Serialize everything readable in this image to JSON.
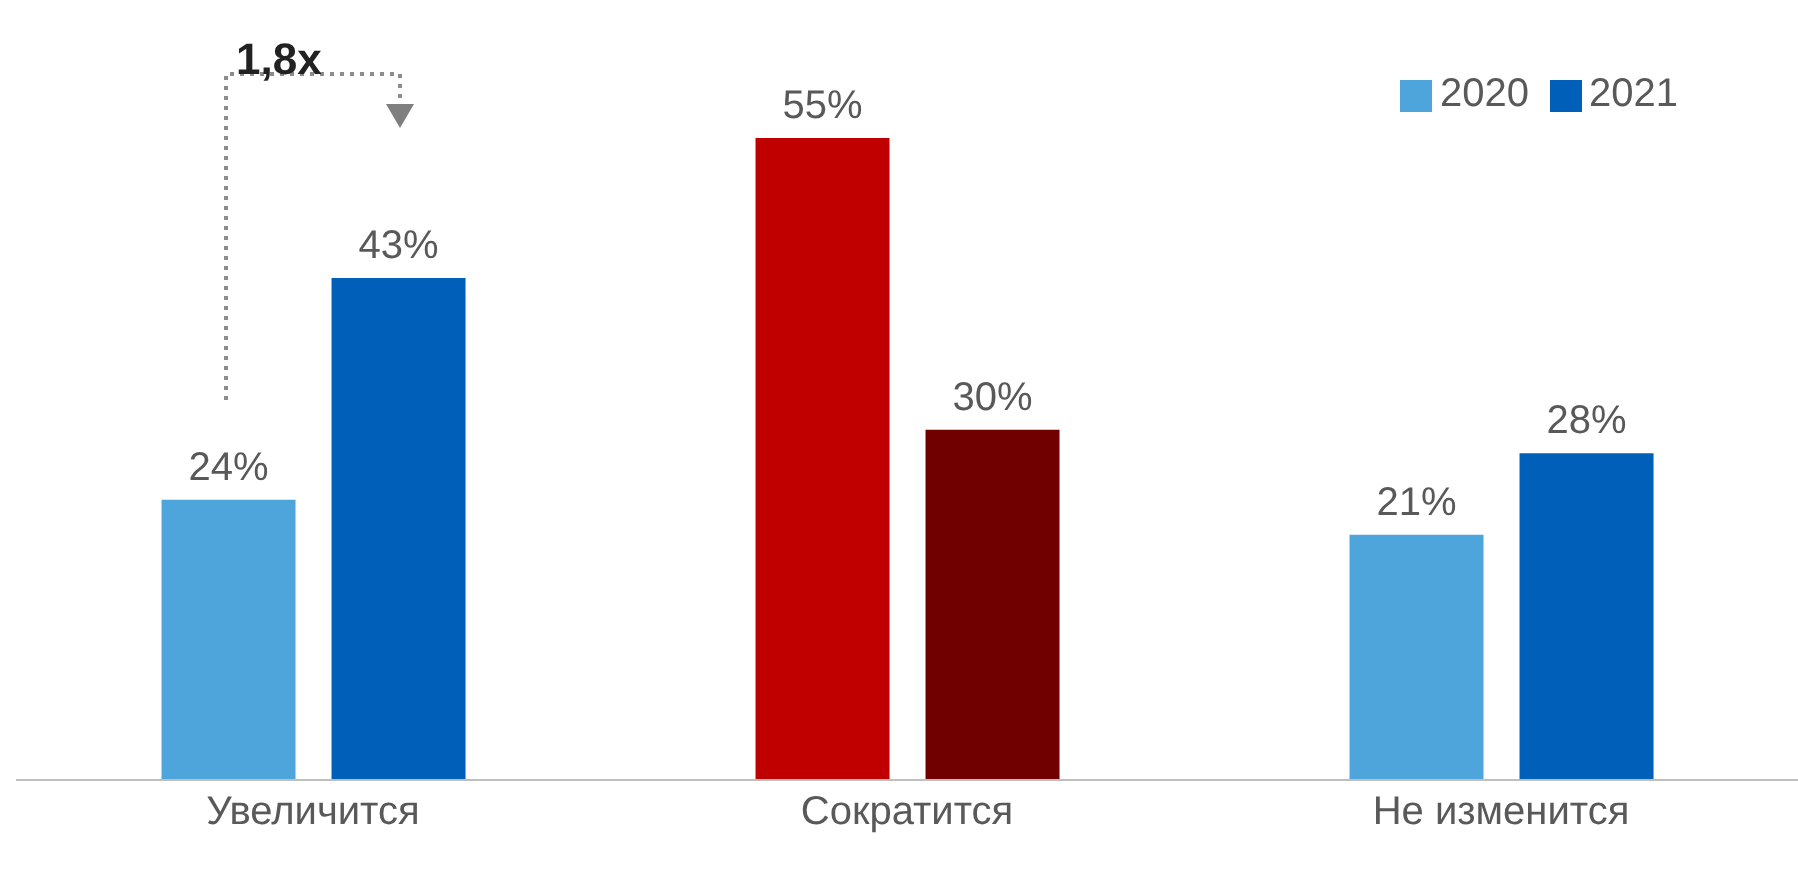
{
  "chart_data": {
    "type": "bar",
    "categories": [
      "Увеличится",
      "Сократится",
      "Не изменится"
    ],
    "series": [
      {
        "name": "2020",
        "color": "#4ea5dc",
        "colors": [
          "#4ea5dc",
          "#c00000",
          "#4ea5dc"
        ],
        "values": [
          24,
          55,
          21
        ],
        "value_labels": [
          "24%",
          "55%",
          "21%"
        ]
      },
      {
        "name": "2021",
        "color": "#005fb9",
        "colors": [
          "#005fb9",
          "#700000",
          "#005fb9"
        ],
        "values": [
          43,
          30,
          28
        ],
        "value_labels": [
          "43%",
          "30%",
          "28%"
        ]
      }
    ],
    "annotations": [
      "1,8x"
    ],
    "legend": "top right"
  }
}
